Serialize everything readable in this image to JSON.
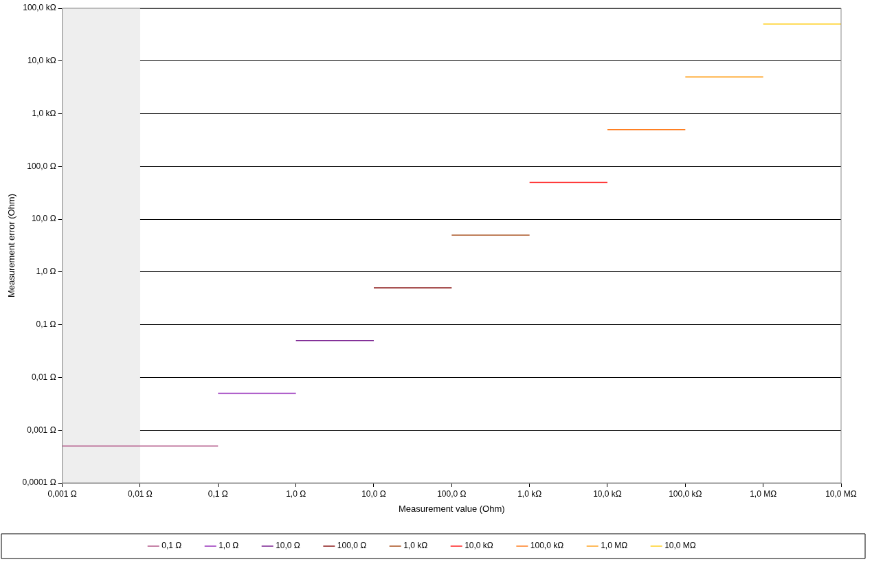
{
  "chart_data": {
    "type": "line",
    "xlabel": "Measurement value (Ohm)",
    "ylabel": "Measurement error (Ohm)",
    "log": "xy",
    "grid": "y",
    "legend": "bottom",
    "marker": "none",
    "line_style": "solid",
    "xlim": [
      0.001,
      10000000
    ],
    "ylim": [
      0.0001,
      100000
    ],
    "xticks": [
      {
        "value": 0.001,
        "label": "0,001 Ω"
      },
      {
        "value": 0.01,
        "label": "0,01 Ω"
      },
      {
        "value": 0.1,
        "label": "0,1 Ω"
      },
      {
        "value": 1,
        "label": "1,0 Ω"
      },
      {
        "value": 10,
        "label": "10,0 Ω"
      },
      {
        "value": 100,
        "label": "100,0 Ω"
      },
      {
        "value": 1000,
        "label": "1,0 kΩ"
      },
      {
        "value": 10000,
        "label": "10,0 kΩ"
      },
      {
        "value": 100000,
        "label": "100,0 kΩ"
      },
      {
        "value": 1000000,
        "label": "1,0 MΩ"
      },
      {
        "value": 10000000,
        "label": "10,0 MΩ"
      }
    ],
    "yticks": [
      {
        "value": 0.0001,
        "label": "0,0001 Ω"
      },
      {
        "value": 0.001,
        "label": "0,001 Ω"
      },
      {
        "value": 0.01,
        "label": "0,01 Ω"
      },
      {
        "value": 0.1,
        "label": "0,1 Ω"
      },
      {
        "value": 1,
        "label": "1,0 Ω"
      },
      {
        "value": 10,
        "label": "10,0 Ω"
      },
      {
        "value": 100,
        "label": "100,0 Ω"
      },
      {
        "value": 1000,
        "label": "1,0 kΩ"
      },
      {
        "value": 10000,
        "label": "10,0 kΩ"
      },
      {
        "value": 100000,
        "label": "100,0 kΩ"
      }
    ],
    "bands": [
      {
        "axis": "x",
        "from": 0.001,
        "to": 0.01,
        "color": "#eeeeee"
      }
    ],
    "series": [
      {
        "name": "0,1 Ω",
        "color": "#b35a8a",
        "x": [
          0.001,
          0.1
        ],
        "values": [
          0.0005,
          0.0005
        ]
      },
      {
        "name": "1,0 Ω",
        "color": "#9933bb",
        "x": [
          0.1,
          1
        ],
        "values": [
          0.005,
          0.005
        ]
      },
      {
        "name": "10,0 Ω",
        "color": "#7a2290",
        "x": [
          1,
          10
        ],
        "values": [
          0.05,
          0.05
        ]
      },
      {
        "name": "100,0 Ω",
        "color": "#8b1a1a",
        "x": [
          10,
          100
        ],
        "values": [
          0.5,
          0.5
        ]
      },
      {
        "name": "1,0 kΩ",
        "color": "#a8501e",
        "x": [
          100,
          1000
        ],
        "values": [
          5,
          5
        ]
      },
      {
        "name": "10,0 kΩ",
        "color": "#ff2222",
        "x": [
          1000,
          10000
        ],
        "values": [
          50,
          50
        ]
      },
      {
        "name": "100,0 kΩ",
        "color": "#ff7f22",
        "x": [
          10000,
          100000
        ],
        "values": [
          500,
          500
        ]
      },
      {
        "name": "1,0 MΩ",
        "color": "#ffa526",
        "x": [
          100000,
          1000000
        ],
        "values": [
          5000,
          5000
        ]
      },
      {
        "name": "10,0 MΩ",
        "color": "#ffd024",
        "x": [
          1000000,
          10000000
        ],
        "values": [
          50000,
          50000
        ]
      }
    ]
  }
}
